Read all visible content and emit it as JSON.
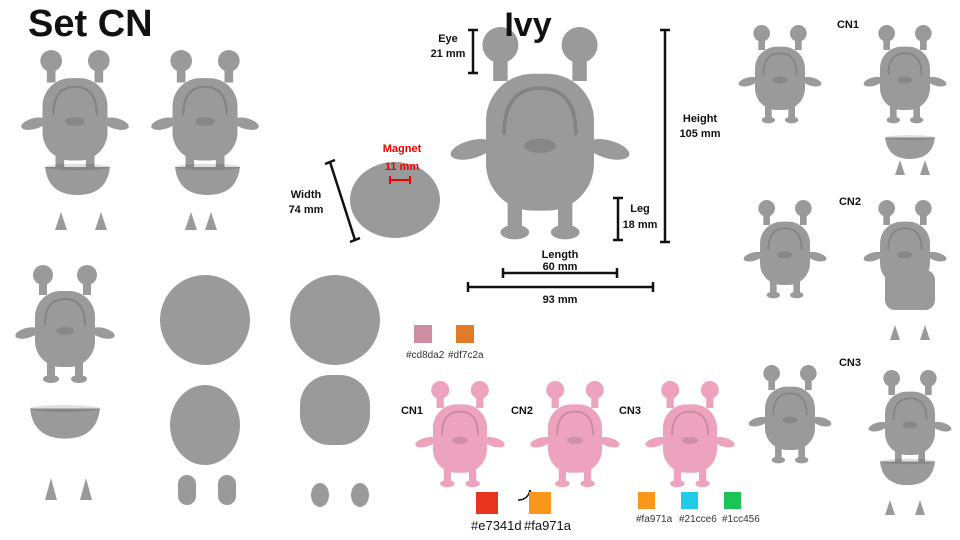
{
  "set_title": "Set CN",
  "figure_title": "Ivy",
  "dimensions": {
    "eye": {
      "label": "Eye",
      "value": "21 mm"
    },
    "height": {
      "label": "Height",
      "value": "105 mm"
    },
    "magnet": {
      "label": "Magnet",
      "value": "11 mm"
    },
    "width": {
      "label": "Width",
      "value": "74 mm"
    },
    "leg": {
      "label": "Leg",
      "value": "18 mm"
    },
    "length": {
      "label": "Length",
      "value": "60 mm"
    },
    "total_length": {
      "value": "93 mm"
    }
  },
  "variants_side": [
    "CN1",
    "CN2",
    "CN3"
  ],
  "base_colors": [
    "#cd8da2",
    "#df7c2a"
  ],
  "variants_bottom": [
    "CN1",
    "CN2",
    "CN3"
  ],
  "cn2_colors": [
    "#e7341d",
    "#fa971a"
  ],
  "cn3_colors": [
    "#fa971a",
    "#21cce6",
    "#1cc456"
  ]
}
